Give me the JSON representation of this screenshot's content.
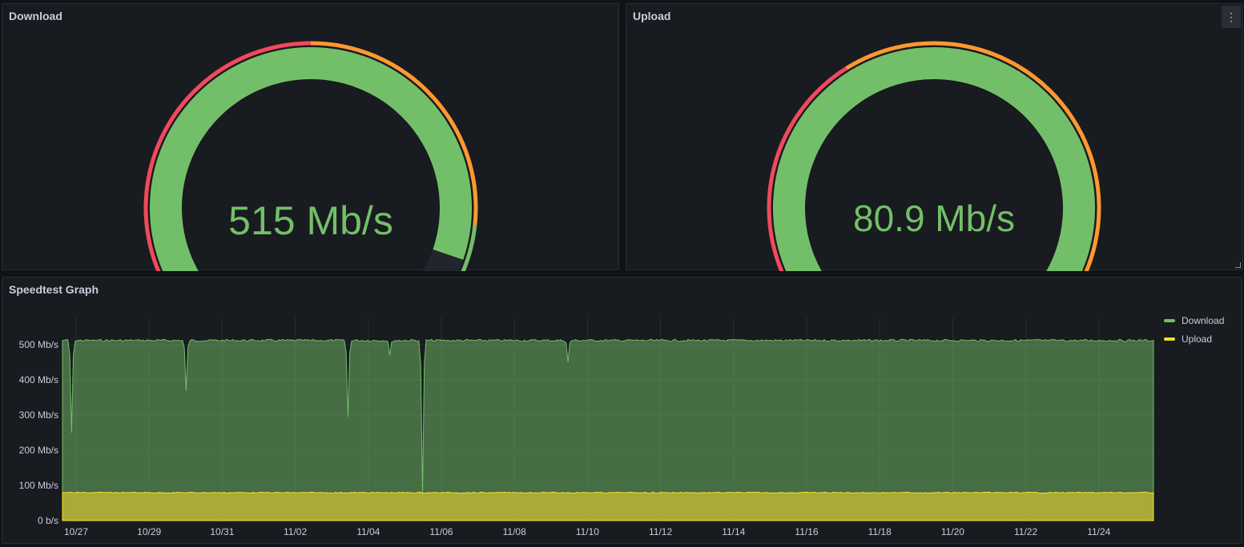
{
  "colors": {
    "green": "#73bf69",
    "yellow": "#fade2a",
    "red": "#f2495c",
    "orange": "#ff9830",
    "track": "#22252b"
  },
  "download_panel": {
    "title": "Download",
    "value_text": "515 Mb/s",
    "gauge": {
      "fraction": 0.84,
      "thresholds": [
        {
          "from": 0,
          "to": 0.5,
          "color": "#f2495c"
        },
        {
          "from": 0.5,
          "to": 0.8,
          "color": "#ff9830"
        },
        {
          "from": 0.8,
          "to": 1.0,
          "color": "#73bf69"
        }
      ]
    }
  },
  "upload_panel": {
    "title": "Upload",
    "value_text": "80.9 Mb/s",
    "menu_icon": "kebab-menu-icon",
    "gauge": {
      "fraction": 0.9,
      "thresholds": [
        {
          "from": 0,
          "to": 0.4,
          "color": "#f2495c"
        },
        {
          "from": 0.4,
          "to": 0.88,
          "color": "#ff9830"
        },
        {
          "from": 0.88,
          "to": 1.0,
          "color": "#73bf69"
        }
      ]
    }
  },
  "graph_panel": {
    "title": "Speedtest Graph",
    "legend": [
      {
        "label": "Download",
        "color": "#73bf69"
      },
      {
        "label": "Upload",
        "color": "#fade2a"
      }
    ]
  },
  "chart_data": {
    "type": "area",
    "title": "Speedtest Graph",
    "x_ticks": [
      "10/27",
      "10/29",
      "10/31",
      "11/02",
      "11/04",
      "11/06",
      "11/08",
      "11/10",
      "11/12",
      "11/14",
      "11/16",
      "11/18",
      "11/20",
      "11/22",
      "11/24"
    ],
    "y_ticks": [
      "0 b/s",
      "100 Mb/s",
      "200 Mb/s",
      "300 Mb/s",
      "400 Mb/s",
      "500 Mb/s"
    ],
    "ylim": [
      0,
      520
    ],
    "xlim_days": [
      0,
      30
    ],
    "grid": true,
    "legend_position": "right",
    "series": [
      {
        "name": "Download",
        "unit": "Mb/s",
        "baseline": 515,
        "dips": [
          {
            "day": 0.25,
            "value": 250
          },
          {
            "day": 3.4,
            "value": 370
          },
          {
            "day": 7.85,
            "value": 295
          },
          {
            "day": 9.0,
            "value": 470
          },
          {
            "day": 9.9,
            "value": 75
          },
          {
            "day": 13.9,
            "value": 450
          }
        ]
      },
      {
        "name": "Upload",
        "unit": "Mb/s",
        "baseline": 81,
        "dips": []
      }
    ]
  }
}
